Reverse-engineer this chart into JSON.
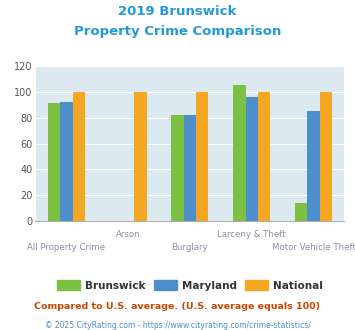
{
  "title_line1": "2019 Brunswick",
  "title_line2": "Property Crime Comparison",
  "categories": [
    "All Property Crime",
    "Arson",
    "Burglary",
    "Larceny & Theft",
    "Motor Vehicle Theft"
  ],
  "brunswick": [
    91,
    0,
    82,
    105,
    14
  ],
  "maryland": [
    92,
    0,
    82,
    96,
    85
  ],
  "national": [
    100,
    100,
    100,
    100,
    100
  ],
  "bar_colors": {
    "brunswick": "#7dc142",
    "maryland": "#4d8fcc",
    "national": "#f5a623"
  },
  "ylim": [
    0,
    120
  ],
  "yticks": [
    0,
    20,
    40,
    60,
    80,
    100,
    120
  ],
  "legend_labels": [
    "Brunswick",
    "Maryland",
    "National"
  ],
  "footnote1": "Compared to U.S. average. (U.S. average equals 100)",
  "footnote2": "© 2025 CityRating.com - https://www.cityrating.com/crime-statistics/",
  "bg_color": "#dce9f0",
  "title_color": "#2299dd",
  "xlabel_color": "#9988aa",
  "footnote1_color": "#cc4400",
  "footnote2_color": "#4d8fcc",
  "bar_width": 0.2,
  "x_positions": [
    0,
    1,
    2,
    3,
    4
  ]
}
